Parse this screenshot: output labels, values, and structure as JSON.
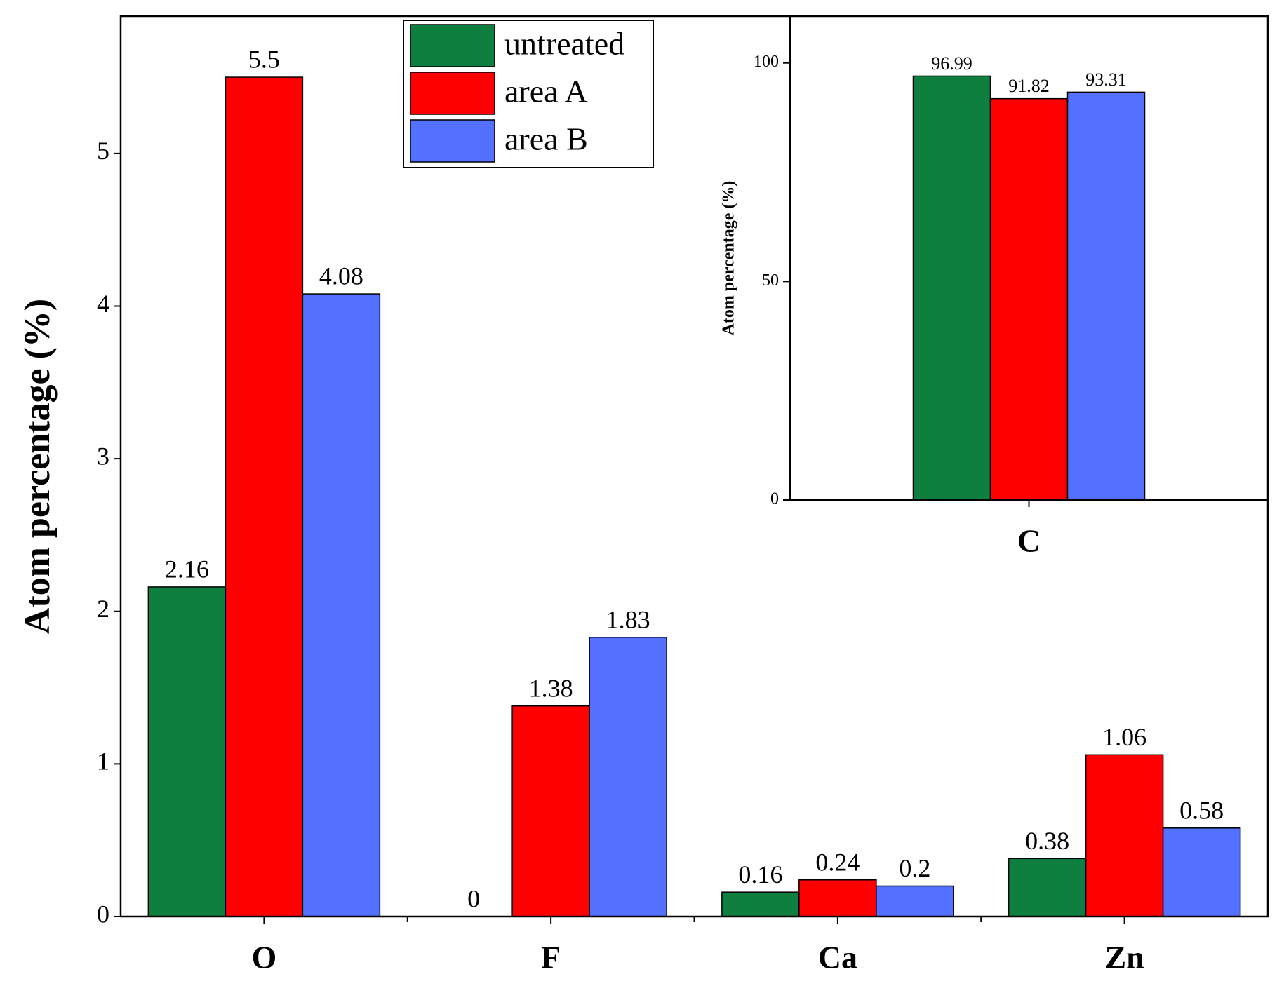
{
  "chart_data": [
    {
      "type": "bar",
      "y_label": "Atom percentage (%)",
      "categories": [
        "O",
        "F",
        "Ca",
        "Zn"
      ],
      "series": [
        {
          "name": "untreated",
          "color": "#0f7f3f",
          "values": [
            2.16,
            0,
            0.16,
            0.38
          ]
        },
        {
          "name": "area A",
          "color": "#ff0000",
          "values": [
            5.5,
            1.38,
            0.24,
            1.06
          ]
        },
        {
          "name": "area B",
          "color": "#5470ff",
          "values": [
            4.08,
            1.83,
            0.2,
            0.58
          ]
        }
      ],
      "ylim": [
        0,
        5.9
      ],
      "yticks": [
        0,
        1,
        2,
        3,
        4,
        5
      ],
      "legend": "top-center"
    },
    {
      "type": "bar",
      "y_label": "Atom percentage (%)",
      "categories": [
        "C"
      ],
      "series": [
        {
          "name": "untreated",
          "color": "#0f7f3f",
          "values": [
            96.99
          ]
        },
        {
          "name": "area A",
          "color": "#ff0000",
          "values": [
            91.82
          ]
        },
        {
          "name": "area B",
          "color": "#5470ff",
          "values": [
            93.31
          ]
        }
      ],
      "ylim": [
        0,
        110.7
      ],
      "yticks": [
        0,
        50,
        100
      ]
    }
  ]
}
